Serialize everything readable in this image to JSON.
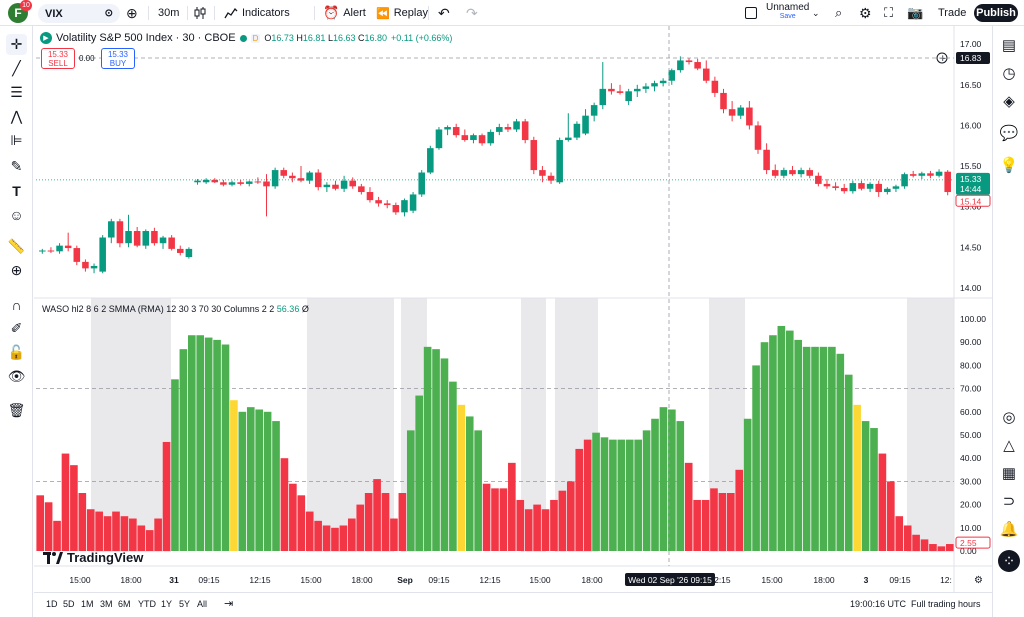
{
  "app": {
    "logo_letter": "F",
    "notification_count": "10",
    "symbol": "VIX",
    "interval": "30m",
    "indicators_label": "Indicators",
    "alert_label": "Alert",
    "replay_label": "Replay",
    "layout_name": "Unnamed",
    "save_label": "Save",
    "trade_label": "Trade",
    "publish_label": "Publish"
  },
  "legend": {
    "title": "Volatility S&P 500 Index · 30 · CBOE",
    "d_badge": "D",
    "o_label": "O",
    "o_val": "16.73",
    "h_label": "H",
    "h_val": "16.81",
    "l_label": "L",
    "l_val": "16.63",
    "c_label": "C",
    "c_val": "16.80",
    "change": "+0.11 (+0.66%)",
    "sell_price": "15.33",
    "sell_label": "SELL",
    "spread": "0.00",
    "buy_price": "15.33",
    "buy_label": "BUY"
  },
  "indicator_legend": {
    "text": "WASO hl2 8 6 2 SMMA (RMA) 12 30 3 70 30 Columns 2 2",
    "value": "56.36",
    "tail": "Ø"
  },
  "watermark": "TradingView",
  "bottom": {
    "ranges": [
      "1D",
      "5D",
      "1M",
      "3M",
      "6M",
      "YTD",
      "1Y",
      "5Y",
      "All"
    ],
    "clock": "19:00:16 UTC",
    "session": "Full trading hours"
  },
  "colors": {
    "up": "#089981",
    "down": "#f23645",
    "osc_green": "#4caf50",
    "osc_red": "#f23645",
    "osc_yellow": "#fdd835",
    "session_shade": "#e9e9ec"
  },
  "chart_data": [
    {
      "type": "candlestick",
      "title": "Volatility S&P 500 Index · 30 · CBOE",
      "ylim": [
        13.9,
        17.15
      ],
      "price_ticks": [
        "17.00",
        "16.50",
        "16.00",
        "15.50",
        "15.00",
        "14.50",
        "14.00"
      ],
      "last_price_label": "15.33",
      "countdown_label": "14:44",
      "prev_close_label": "15.14",
      "crosshair_price_label": "16.83",
      "candles": [
        {
          "o": 14.45,
          "h": 14.48,
          "l": 14.42,
          "c": 14.46
        },
        {
          "o": 14.46,
          "h": 14.5,
          "l": 14.43,
          "c": 14.45
        },
        {
          "o": 14.45,
          "h": 14.55,
          "l": 14.42,
          "c": 14.52
        },
        {
          "o": 14.52,
          "h": 14.68,
          "l": 14.45,
          "c": 14.49
        },
        {
          "o": 14.49,
          "h": 14.52,
          "l": 14.28,
          "c": 14.32
        },
        {
          "o": 14.32,
          "h": 14.35,
          "l": 14.2,
          "c": 14.24
        },
        {
          "o": 14.24,
          "h": 14.3,
          "l": 14.18,
          "c": 14.27
        },
        {
          "o": 14.2,
          "h": 14.65,
          "l": 14.18,
          "c": 14.62
        },
        {
          "o": 14.62,
          "h": 14.85,
          "l": 14.55,
          "c": 14.82
        },
        {
          "o": 14.82,
          "h": 14.85,
          "l": 14.5,
          "c": 14.55
        },
        {
          "o": 14.55,
          "h": 14.9,
          "l": 14.5,
          "c": 14.7
        },
        {
          "o": 14.7,
          "h": 14.75,
          "l": 14.5,
          "c": 14.52
        },
        {
          "o": 14.52,
          "h": 14.72,
          "l": 14.48,
          "c": 14.7
        },
        {
          "o": 14.7,
          "h": 14.74,
          "l": 14.52,
          "c": 14.55
        },
        {
          "o": 14.55,
          "h": 14.64,
          "l": 14.48,
          "c": 14.62
        },
        {
          "o": 14.62,
          "h": 14.65,
          "l": 14.46,
          "c": 14.48
        },
        {
          "o": 14.48,
          "h": 14.52,
          "l": 14.4,
          "c": 14.43
        },
        {
          "o": 14.38,
          "h": 14.5,
          "l": 14.36,
          "c": 14.48
        },
        {
          "o": 15.3,
          "h": 15.34,
          "l": 15.27,
          "c": 15.32
        },
        {
          "o": 15.3,
          "h": 15.35,
          "l": 15.28,
          "c": 15.33
        },
        {
          "o": 15.33,
          "h": 15.35,
          "l": 15.29,
          "c": 15.3
        },
        {
          "o": 15.3,
          "h": 15.33,
          "l": 15.25,
          "c": 15.27
        },
        {
          "o": 15.27,
          "h": 15.32,
          "l": 15.25,
          "c": 15.3
        },
        {
          "o": 15.3,
          "h": 15.33,
          "l": 15.26,
          "c": 15.28
        },
        {
          "o": 15.28,
          "h": 15.32,
          "l": 15.25,
          "c": 15.31
        },
        {
          "o": 15.31,
          "h": 15.36,
          "l": 15.28,
          "c": 15.3
        },
        {
          "o": 15.31,
          "h": 15.4,
          "l": 14.88,
          "c": 15.25
        },
        {
          "o": 15.25,
          "h": 15.48,
          "l": 15.22,
          "c": 15.45
        },
        {
          "o": 15.45,
          "h": 15.48,
          "l": 15.35,
          "c": 15.38
        },
        {
          "o": 15.38,
          "h": 15.42,
          "l": 15.3,
          "c": 15.35
        },
        {
          "o": 15.35,
          "h": 15.5,
          "l": 15.3,
          "c": 15.32
        },
        {
          "o": 15.32,
          "h": 15.44,
          "l": 15.28,
          "c": 15.42
        },
        {
          "o": 15.42,
          "h": 15.46,
          "l": 15.2,
          "c": 15.24
        },
        {
          "o": 15.24,
          "h": 15.3,
          "l": 15.18,
          "c": 15.27
        },
        {
          "o": 15.27,
          "h": 15.32,
          "l": 15.2,
          "c": 15.22
        },
        {
          "o": 15.22,
          "h": 15.38,
          "l": 15.18,
          "c": 15.32
        },
        {
          "o": 15.32,
          "h": 15.36,
          "l": 15.22,
          "c": 15.25
        },
        {
          "o": 15.25,
          "h": 15.28,
          "l": 15.15,
          "c": 15.18
        },
        {
          "o": 15.18,
          "h": 15.24,
          "l": 15.05,
          "c": 15.08
        },
        {
          "o": 15.08,
          "h": 15.12,
          "l": 15.0,
          "c": 15.04
        },
        {
          "o": 15.04,
          "h": 15.08,
          "l": 14.98,
          "c": 15.02
        },
        {
          "o": 15.02,
          "h": 15.05,
          "l": 14.9,
          "c": 14.93
        },
        {
          "o": 14.93,
          "h": 15.1,
          "l": 14.88,
          "c": 15.08
        },
        {
          "o": 14.95,
          "h": 15.18,
          "l": 14.92,
          "c": 15.15
        },
        {
          "o": 15.15,
          "h": 15.45,
          "l": 15.12,
          "c": 15.42
        },
        {
          "o": 15.42,
          "h": 15.75,
          "l": 15.4,
          "c": 15.72
        },
        {
          "o": 15.72,
          "h": 15.98,
          "l": 15.7,
          "c": 15.95
        },
        {
          "o": 15.95,
          "h": 16.0,
          "l": 15.88,
          "c": 15.98
        },
        {
          "o": 15.98,
          "h": 16.02,
          "l": 15.85,
          "c": 15.88
        },
        {
          "o": 15.88,
          "h": 15.95,
          "l": 15.8,
          "c": 15.82
        },
        {
          "o": 15.82,
          "h": 15.9,
          "l": 15.78,
          "c": 15.88
        },
        {
          "o": 15.88,
          "h": 15.9,
          "l": 15.75,
          "c": 15.78
        },
        {
          "o": 15.78,
          "h": 15.95,
          "l": 15.75,
          "c": 15.92
        },
        {
          "o": 15.92,
          "h": 16.02,
          "l": 15.88,
          "c": 15.98
        },
        {
          "o": 15.98,
          "h": 16.02,
          "l": 15.92,
          "c": 15.95
        },
        {
          "o": 15.95,
          "h": 16.08,
          "l": 15.92,
          "c": 16.05
        },
        {
          "o": 16.05,
          "h": 16.08,
          "l": 15.78,
          "c": 15.82
        },
        {
          "o": 15.82,
          "h": 15.86,
          "l": 15.4,
          "c": 15.45
        },
        {
          "o": 15.45,
          "h": 15.5,
          "l": 15.3,
          "c": 15.38
        },
        {
          "o": 15.38,
          "h": 15.42,
          "l": 15.28,
          "c": 15.32
        },
        {
          "o": 15.3,
          "h": 15.85,
          "l": 15.28,
          "c": 15.82
        },
        {
          "o": 15.82,
          "h": 16.15,
          "l": 15.8,
          "c": 15.85
        },
        {
          "o": 15.85,
          "h": 16.05,
          "l": 15.82,
          "c": 16.02
        },
        {
          "o": 15.9,
          "h": 16.2,
          "l": 15.88,
          "c": 16.12
        },
        {
          "o": 16.12,
          "h": 16.28,
          "l": 16.05,
          "c": 16.25
        },
        {
          "o": 16.25,
          "h": 16.78,
          "l": 16.2,
          "c": 16.45
        },
        {
          "o": 16.45,
          "h": 16.52,
          "l": 16.38,
          "c": 16.42
        },
        {
          "o": 16.42,
          "h": 16.5,
          "l": 16.38,
          "c": 16.4
        },
        {
          "o": 16.3,
          "h": 16.45,
          "l": 16.25,
          "c": 16.42
        },
        {
          "o": 16.42,
          "h": 16.5,
          "l": 16.35,
          "c": 16.45
        },
        {
          "o": 16.45,
          "h": 16.52,
          "l": 16.4,
          "c": 16.48
        },
        {
          "o": 16.48,
          "h": 16.55,
          "l": 16.42,
          "c": 16.52
        },
        {
          "o": 16.52,
          "h": 16.58,
          "l": 16.48,
          "c": 16.55
        },
        {
          "o": 16.55,
          "h": 16.7,
          "l": 16.5,
          "c": 16.68
        },
        {
          "o": 16.68,
          "h": 16.85,
          "l": 16.65,
          "c": 16.8
        },
        {
          "o": 16.8,
          "h": 16.83,
          "l": 16.75,
          "c": 16.78
        },
        {
          "o": 16.78,
          "h": 16.82,
          "l": 16.68,
          "c": 16.7
        },
        {
          "o": 16.7,
          "h": 16.8,
          "l": 16.52,
          "c": 16.55
        },
        {
          "o": 16.55,
          "h": 16.6,
          "l": 16.35,
          "c": 16.4
        },
        {
          "o": 16.4,
          "h": 16.45,
          "l": 16.15,
          "c": 16.2
        },
        {
          "o": 16.2,
          "h": 16.3,
          "l": 16.05,
          "c": 16.12
        },
        {
          "o": 16.12,
          "h": 16.25,
          "l": 16.08,
          "c": 16.22
        },
        {
          "o": 16.22,
          "h": 16.3,
          "l": 15.95,
          "c": 16.0
        },
        {
          "o": 16.0,
          "h": 16.05,
          "l": 15.65,
          "c": 15.7
        },
        {
          "o": 15.7,
          "h": 15.78,
          "l": 15.4,
          "c": 15.45
        },
        {
          "o": 15.45,
          "h": 15.52,
          "l": 15.35,
          "c": 15.38
        },
        {
          "o": 15.38,
          "h": 15.48,
          "l": 15.35,
          "c": 15.45
        },
        {
          "o": 15.45,
          "h": 15.5,
          "l": 15.38,
          "c": 15.4
        },
        {
          "o": 15.4,
          "h": 15.48,
          "l": 15.36,
          "c": 15.45
        },
        {
          "o": 15.45,
          "h": 15.48,
          "l": 15.35,
          "c": 15.38
        },
        {
          "o": 15.38,
          "h": 15.42,
          "l": 15.25,
          "c": 15.28
        },
        {
          "o": 15.28,
          "h": 15.34,
          "l": 15.22,
          "c": 15.25
        },
        {
          "o": 15.25,
          "h": 15.3,
          "l": 15.2,
          "c": 15.23
        },
        {
          "o": 15.23,
          "h": 15.28,
          "l": 15.16,
          "c": 15.19
        },
        {
          "o": 15.19,
          "h": 15.32,
          "l": 15.16,
          "c": 15.29
        },
        {
          "o": 15.29,
          "h": 15.32,
          "l": 15.2,
          "c": 15.22
        },
        {
          "o": 15.22,
          "h": 15.3,
          "l": 15.18,
          "c": 15.28
        },
        {
          "o": 15.28,
          "h": 15.32,
          "l": 15.12,
          "c": 15.18
        },
        {
          "o": 15.18,
          "h": 15.24,
          "l": 15.15,
          "c": 15.22
        },
        {
          "o": 15.22,
          "h": 15.27,
          "l": 15.18,
          "c": 15.25
        },
        {
          "o": 15.25,
          "h": 15.42,
          "l": 15.22,
          "c": 15.4
        },
        {
          "o": 15.4,
          "h": 15.44,
          "l": 15.36,
          "c": 15.38
        },
        {
          "o": 15.38,
          "h": 15.43,
          "l": 15.34,
          "c": 15.41
        },
        {
          "o": 15.41,
          "h": 15.44,
          "l": 15.35,
          "c": 15.38
        },
        {
          "o": 15.38,
          "h": 15.46,
          "l": 15.36,
          "c": 15.43
        },
        {
          "o": 15.43,
          "h": 15.45,
          "l": 15.14,
          "c": 15.18
        }
      ]
    },
    {
      "type": "bar",
      "title": "WASO hl2 8 6 2 SMMA (RMA) 12 30 3 70 30 Columns 2 2",
      "ylim": [
        0,
        100
      ],
      "y_ticks": [
        "100.00",
        "90.00",
        "80.00",
        "70.00",
        "60.00",
        "50.00",
        "40.00",
        "30.00",
        "20.00",
        "10.00",
        "0.00"
      ],
      "levels": [
        70,
        30
      ],
      "last_value_label": "2.55",
      "values": [
        24,
        21,
        13,
        42,
        37,
        25,
        18,
        17,
        15,
        17,
        15,
        14,
        11,
        9,
        14,
        47,
        74,
        87,
        93,
        93,
        92,
        91,
        89,
        65,
        60,
        62,
        61,
        60,
        56,
        40,
        29,
        24,
        17,
        13,
        11,
        10,
        11,
        14,
        20,
        25,
        31,
        25,
        14,
        25,
        52,
        67,
        88,
        87,
        83,
        73,
        63,
        58,
        52,
        29,
        27,
        27,
        38,
        22,
        18,
        20,
        18,
        22,
        26,
        30,
        44,
        48,
        51,
        49,
        48,
        48,
        48,
        48,
        52,
        57,
        62,
        61,
        56,
        38,
        22,
        22,
        27,
        25,
        25,
        35,
        57,
        80,
        90,
        93,
        97,
        95,
        91,
        88,
        88,
        88,
        88,
        85,
        76,
        63,
        56,
        53,
        42,
        30,
        15,
        11,
        7,
        5,
        3,
        2,
        3
      ],
      "colors": [
        "r",
        "r",
        "r",
        "r",
        "r",
        "r",
        "r",
        "r",
        "r",
        "r",
        "r",
        "r",
        "r",
        "r",
        "r",
        "r",
        "g",
        "g",
        "g",
        "g",
        "g",
        "g",
        "g",
        "y",
        "g",
        "g",
        "g",
        "g",
        "g",
        "r",
        "r",
        "r",
        "r",
        "r",
        "r",
        "r",
        "r",
        "r",
        "r",
        "r",
        "r",
        "r",
        "r",
        "r",
        "g",
        "g",
        "g",
        "g",
        "g",
        "g",
        "y",
        "g",
        "g",
        "r",
        "r",
        "r",
        "r",
        "r",
        "r",
        "r",
        "r",
        "r",
        "r",
        "r",
        "r",
        "r",
        "g",
        "g",
        "g",
        "g",
        "g",
        "g",
        "g",
        "g",
        "g",
        "g",
        "g",
        "r",
        "r",
        "r",
        "r",
        "r",
        "r",
        "r",
        "g",
        "g",
        "g",
        "g",
        "g",
        "g",
        "g",
        "g",
        "g",
        "g",
        "g",
        "g",
        "g",
        "y",
        "g",
        "g",
        "r",
        "r",
        "r",
        "r",
        "r",
        "r",
        "r",
        "r",
        "r"
      ]
    }
  ],
  "time_axis": {
    "labels": [
      "15:00",
      "18:00",
      "31",
      "09:15",
      "12:15",
      "15:00",
      "18:00",
      "Sep",
      "09:15",
      "12:15",
      "15:00",
      "18:00",
      "12:15",
      "15:00",
      "18:00",
      "3",
      "09:15",
      "12:"
    ],
    "crosshair_label": "Wed 02 Sep '26   09:15"
  }
}
